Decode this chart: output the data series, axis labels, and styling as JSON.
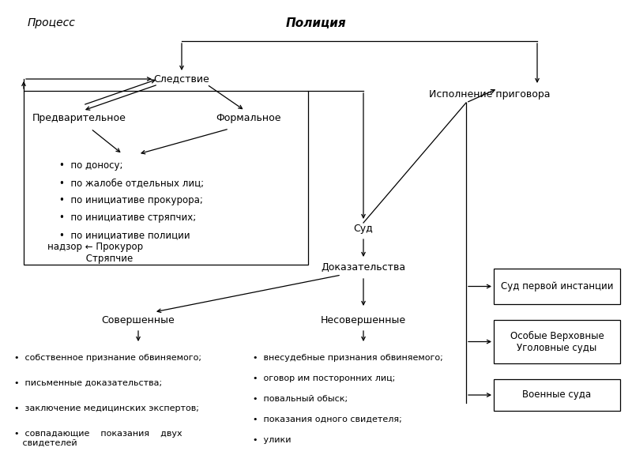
{
  "bg": "#ffffff",
  "tc": "#000000",
  "title": "Процесс",
  "policia": "Полиция",
  "sledstvie": "Следствие",
  "predvaritelnoe": "Предварительное",
  "formalnoe": "Формальное",
  "sud": "Суд",
  "dokazatelstva": "Доказательства",
  "sovershennye": "Совершенные",
  "nesovershennye": "Несовершенные",
  "ispolnenie": "Исполнение приговора",
  "nadzor": "надзор ← Прокурор\n             Стряпчие",
  "sud1_label": "Суд первой инстанции",
  "osobye_label": "Особые Верховные\nУголовные суды",
  "voennye_label": "Военные суда",
  "bullets_left": [
    "•  по доносу;",
    "•  по жалобе отдельных лиц;",
    "•  по инициативе прокурора;",
    "•  по инициативе стряпчих;",
    "•  по инициативе полиции"
  ],
  "bullets_sv": [
    "•  собственное признание обвиняемого;",
    "•  письменные доказательства;",
    "•  заключение медицинских экспертов;",
    "•  совпадающие    показания    двух\n   свидетелей"
  ],
  "bullets_ns": [
    "•  внесудебные признания обвиняемого;",
    "•  оговор им посторонних лиц;",
    "•  повальный обыск;",
    "•  показания одного свидетеля;",
    "•  улики"
  ]
}
